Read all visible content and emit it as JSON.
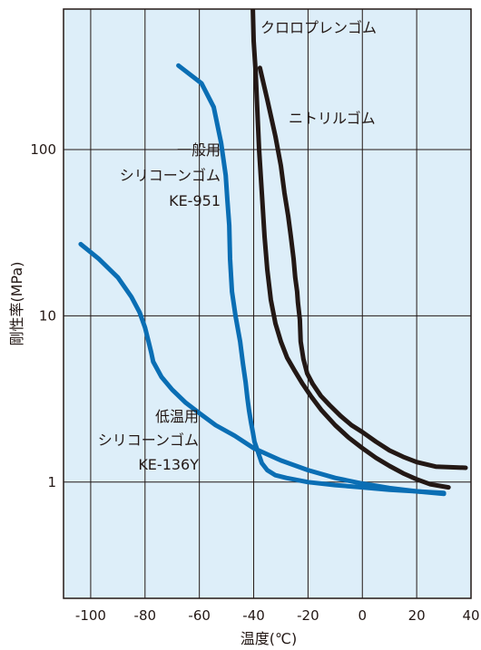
{
  "chart_data": {
    "type": "line",
    "title": "",
    "xlabel": "温度(℃)",
    "ylabel": "剛性率(MPa)",
    "xlim": [
      -110,
      40
    ],
    "ylim": [
      0.2,
      700
    ],
    "yscale": "log",
    "grid": true,
    "x_ticks": [
      -100,
      -80,
      -60,
      -40,
      -20,
      0,
      20,
      40
    ],
    "x_tick_labels": [
      "-100",
      "-80",
      "-60",
      "-40",
      "-20",
      "0",
      "20",
      "40"
    ],
    "y_ticks": [
      1,
      10,
      100
    ],
    "y_tick_labels": [
      "1",
      "10",
      "100"
    ],
    "background": "#ddeef9",
    "series": [
      {
        "name": "一般用 シリコーンゴム KE-951",
        "color": "#0a6eb4",
        "label_lines": [
          "一般用",
          "シリコーンゴム",
          "KE-951"
        ],
        "x": [
          -67.7,
          -59.2,
          -54.7,
          -52.0,
          -50.3,
          -49.7,
          -49.0,
          -48.7,
          -48.0,
          -46.7,
          -45.0,
          -44.0,
          -43.0,
          -42.3,
          -41.7,
          -41.0,
          -40.3,
          -39.7,
          -38.3,
          -37.0,
          -35.0,
          -32.0,
          -28.0,
          -20.0,
          -10.0,
          0.0,
          10.0,
          20.0,
          30.0
        ],
        "y": [
          320,
          250,
          180,
          110,
          70,
          50,
          35,
          22,
          14,
          10,
          7,
          5.2,
          4,
          3.2,
          2.7,
          2.3,
          2.0,
          1.75,
          1.5,
          1.3,
          1.18,
          1.1,
          1.06,
          1.0,
          0.96,
          0.93,
          0.9,
          0.88,
          0.86
        ]
      },
      {
        "name": "低温用 シリコーンゴム KE-136Y",
        "color": "#0a6eb4",
        "label_lines": [
          "低温用",
          "シリコーンゴム",
          "KE-136Y"
        ],
        "x": [
          -103.7,
          -97.0,
          -90.0,
          -85.0,
          -82.0,
          -80.0,
          -78.7,
          -77.7,
          -77.0,
          -74.0,
          -70.0,
          -65.0,
          -60.0,
          -54.0,
          -47.0,
          -40.0,
          -30.0,
          -20.0,
          -10.0,
          0.0,
          10.0,
          20.0,
          30.0
        ],
        "y": [
          27,
          22,
          17,
          13,
          10.5,
          8.5,
          7,
          6,
          5.3,
          4.3,
          3.6,
          3.0,
          2.6,
          2.2,
          1.9,
          1.6,
          1.35,
          1.18,
          1.06,
          0.98,
          0.92,
          0.88,
          0.85
        ]
      },
      {
        "name": "クロロプレンゴム",
        "color": "#231815",
        "label_lines": [
          "クロロプレンゴム"
        ],
        "x": [
          -40.3,
          -40.0,
          -39.3,
          -38.7,
          -38.0,
          -37.0,
          -36.0,
          -35.0,
          -33.7,
          -32.0,
          -30.0,
          -27.7,
          -25.0,
          -22.0,
          -19.0,
          -15.0,
          -10.0,
          -5.0,
          0.0,
          5.0,
          10.0,
          15.0,
          20.0,
          25.0,
          31.7
        ],
        "y": [
          700,
          450,
          300,
          180,
          100,
          55,
          30,
          19,
          12.5,
          9,
          7,
          5.6,
          4.7,
          3.9,
          3.3,
          2.7,
          2.2,
          1.85,
          1.6,
          1.4,
          1.25,
          1.13,
          1.04,
          0.97,
          0.93
        ]
      },
      {
        "name": "ニトリルゴム",
        "color": "#231815",
        "label_lines": [
          "ニトリルゴム"
        ],
        "x": [
          -37.7,
          -35.0,
          -32.0,
          -30.0,
          -28.7,
          -27.3,
          -26.3,
          -25.3,
          -24.7,
          -24.0,
          -23.7,
          -23.3,
          -23.0,
          -22.7,
          -21.7,
          -20.3,
          -18.3,
          -15.3,
          -12.0,
          -8.0,
          -4.0,
          0.0,
          5.0,
          10.0,
          15.0,
          20.0,
          27.0,
          38.0
        ],
        "y": [
          310,
          200,
          120,
          80,
          55,
          40,
          30,
          22,
          17,
          14,
          12,
          10.5,
          9.5,
          7,
          5.5,
          4.5,
          3.9,
          3.3,
          2.9,
          2.5,
          2.2,
          2.0,
          1.75,
          1.55,
          1.42,
          1.32,
          1.24,
          1.22
        ]
      }
    ]
  }
}
